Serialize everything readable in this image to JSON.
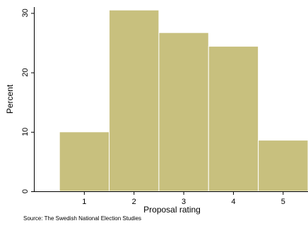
{
  "chart_data": {
    "type": "bar",
    "subtype": "histogram",
    "categories": [
      "1",
      "2",
      "3",
      "4",
      "5"
    ],
    "values": [
      10.0,
      30.5,
      26.7,
      24.4,
      8.6
    ],
    "xlabel": "Proposal rating",
    "ylabel": "Percent",
    "xlim": [
      0,
      5.5
    ],
    "ylim": [
      0,
      31
    ],
    "yticks": [
      0,
      10,
      20,
      30
    ],
    "xticks": [
      1,
      2,
      3,
      4,
      5
    ],
    "bar_color": "#c8c07e",
    "bar_edge_color": "#ffffff",
    "grid": false,
    "legend": "none",
    "note": "Source: The Swedish National Election Studies"
  }
}
